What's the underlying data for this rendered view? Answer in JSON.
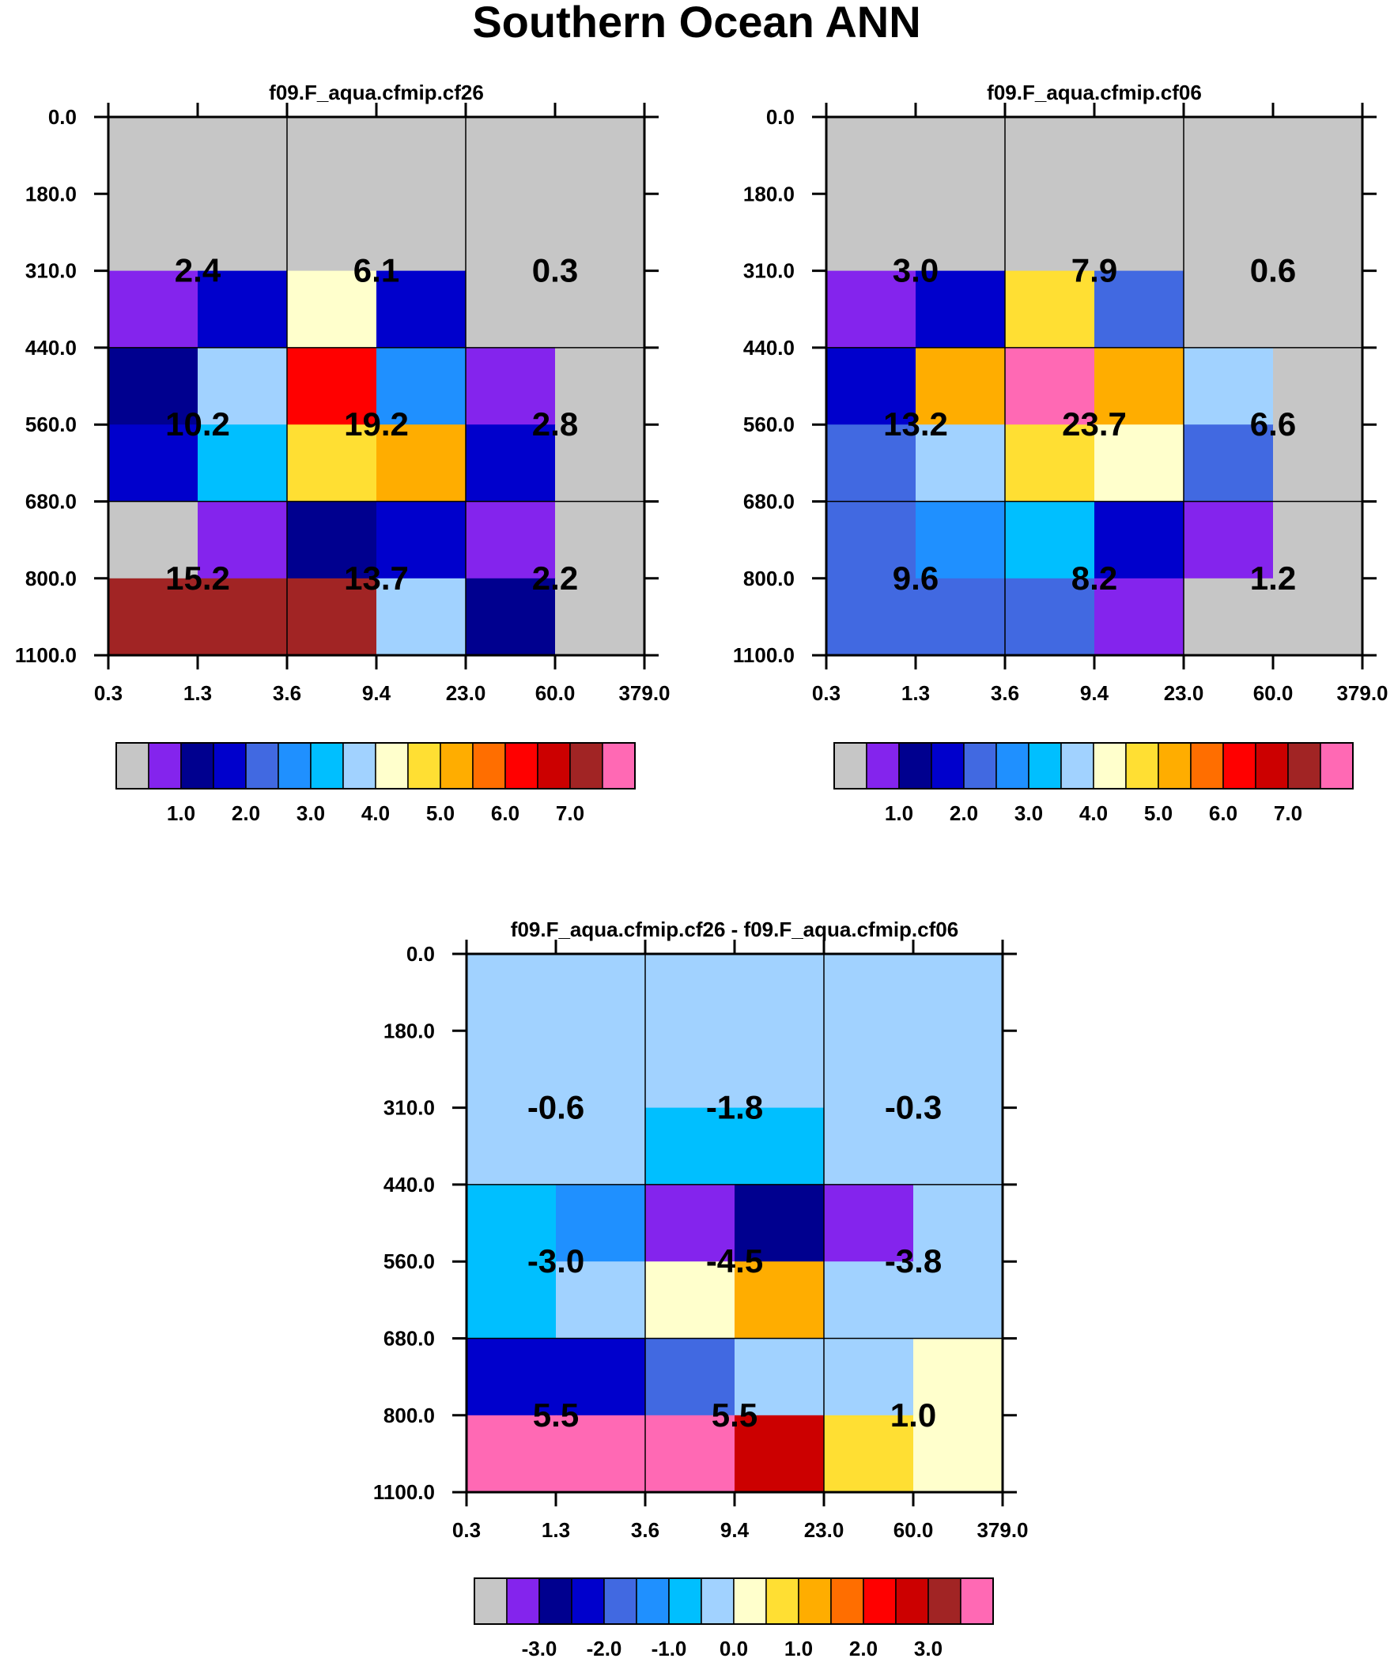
{
  "title": "Southern Ocean ANN",
  "palette": [
    "#c6c6c6",
    "#8424ed",
    "#00008f",
    "#0000cc",
    "#4169e1",
    "#1f90ff",
    "#00bfff",
    "#a1d2ff",
    "#ffffcc",
    "#ffdf33",
    "#ffad00",
    "#ff6e00",
    "#ff0000",
    "#cc0000",
    "#a12424",
    "#ff69b4"
  ],
  "chart_data": [
    {
      "type": "heatmap",
      "title": "f09.F_aqua.cfmip.cf26",
      "y_ticks": [
        "0.0",
        "180.0",
        "310.0",
        "440.0",
        "560.0",
        "680.0",
        "800.0",
        "1100.0"
      ],
      "x_ticks": [
        "0.3",
        "1.3",
        "3.6",
        "9.4",
        "23.0",
        "60.0",
        "379.0"
      ],
      "cells": [
        [
          0,
          0,
          0,
          0,
          0,
          0
        ],
        [
          0,
          0,
          0,
          0,
          0,
          0
        ],
        [
          1,
          3,
          8,
          3,
          0,
          0
        ],
        [
          2,
          7,
          12,
          5,
          1,
          0
        ],
        [
          3,
          6,
          9,
          10,
          3,
          0
        ],
        [
          0,
          1,
          2,
          3,
          1,
          0
        ],
        [
          14,
          14,
          14,
          7,
          2,
          0
        ]
      ],
      "block_labels": [
        [
          "2.4",
          "6.1",
          "0.3"
        ],
        [
          "10.2",
          "19.2",
          "2.8"
        ],
        [
          "15.2",
          "13.7",
          "2.2"
        ]
      ],
      "colorbar_labels": [
        "1.0",
        "2.0",
        "3.0",
        "4.0",
        "5.0",
        "6.0",
        "7.0"
      ]
    },
    {
      "type": "heatmap",
      "title": "f09.F_aqua.cfmip.cf06",
      "y_ticks": [
        "0.0",
        "180.0",
        "310.0",
        "440.0",
        "560.0",
        "680.0",
        "800.0",
        "1100.0"
      ],
      "x_ticks": [
        "0.3",
        "1.3",
        "3.6",
        "9.4",
        "23.0",
        "60.0",
        "379.0"
      ],
      "cells": [
        [
          0,
          0,
          0,
          0,
          0,
          0
        ],
        [
          0,
          0,
          0,
          0,
          0,
          0
        ],
        [
          1,
          3,
          9,
          4,
          0,
          0
        ],
        [
          3,
          10,
          15,
          10,
          7,
          0
        ],
        [
          4,
          7,
          9,
          8,
          4,
          0
        ],
        [
          4,
          5,
          6,
          3,
          1,
          0
        ],
        [
          4,
          4,
          4,
          1,
          0,
          0
        ]
      ],
      "block_labels": [
        [
          "3.0",
          "7.9",
          "0.6"
        ],
        [
          "13.2",
          "23.7",
          "6.6"
        ],
        [
          "9.6",
          "8.2",
          "1.2"
        ]
      ],
      "colorbar_labels": [
        "1.0",
        "2.0",
        "3.0",
        "4.0",
        "5.0",
        "6.0",
        "7.0"
      ]
    },
    {
      "type": "heatmap",
      "title": "f09.F_aqua.cfmip.cf26 - f09.F_aqua.cfmip.cf06",
      "y_ticks": [
        "0.0",
        "180.0",
        "310.0",
        "440.0",
        "560.0",
        "680.0",
        "800.0",
        "1100.0"
      ],
      "x_ticks": [
        "0.3",
        "1.3",
        "3.6",
        "9.4",
        "23.0",
        "60.0",
        "379.0"
      ],
      "cells": [
        [
          7,
          7,
          7,
          7,
          7,
          7
        ],
        [
          7,
          7,
          7,
          7,
          7,
          7
        ],
        [
          7,
          7,
          6,
          6,
          7,
          7
        ],
        [
          6,
          5,
          1,
          2,
          1,
          7
        ],
        [
          6,
          7,
          8,
          10,
          7,
          7
        ],
        [
          3,
          3,
          4,
          7,
          7,
          8
        ],
        [
          15,
          15,
          15,
          13,
          9,
          8
        ]
      ],
      "block_labels": [
        [
          "-0.6",
          "-1.8",
          "-0.3"
        ],
        [
          "-3.0",
          "-4.5",
          "-3.8"
        ],
        [
          "5.5",
          "5.5",
          "1.0"
        ]
      ],
      "colorbar_labels": [
        "-3.0",
        "-2.0",
        "-1.0",
        "0.0",
        "1.0",
        "2.0",
        "3.0"
      ]
    }
  ]
}
